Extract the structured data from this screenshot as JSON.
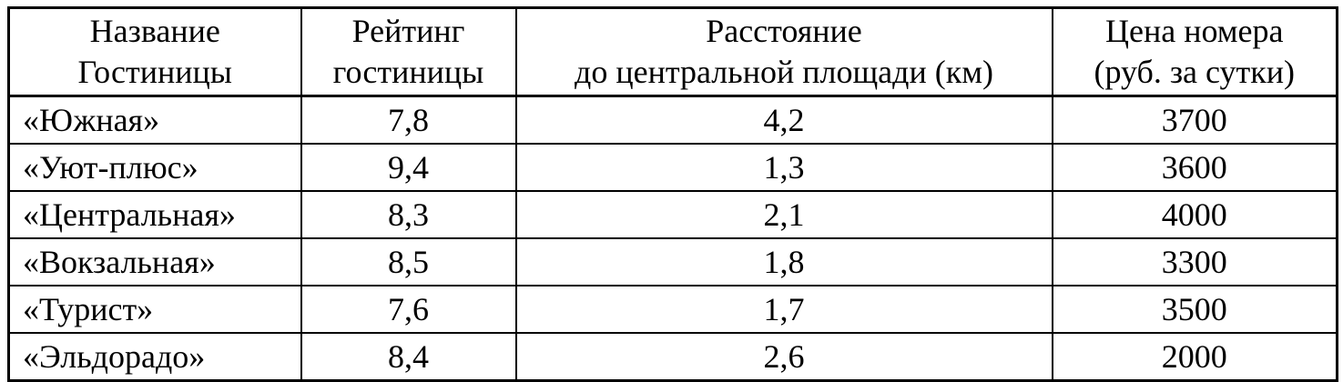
{
  "colors": {
    "border": "#000000",
    "text": "#000000",
    "background": "#ffffff"
  },
  "table": {
    "headers": {
      "name": "Название\nГостиницы",
      "rating": "Рейтинг\nгостиницы",
      "distance": "Расстояние\nдо центральной площади (км)",
      "price": "Цена номера\n(руб. за сутки)"
    },
    "rows": [
      {
        "name": "«Южная»",
        "rating": "7,8",
        "distance": "4,2",
        "price": "3700"
      },
      {
        "name": "«Уют-плюс»",
        "rating": "9,4",
        "distance": "1,3",
        "price": "3600"
      },
      {
        "name": "«Центральная»",
        "rating": "8,3",
        "distance": "2,1",
        "price": "4000"
      },
      {
        "name": "«Вокзальная»",
        "rating": "8,5",
        "distance": "1,8",
        "price": "3300"
      },
      {
        "name": "«Турист»",
        "rating": "7,6",
        "distance": "1,7",
        "price": "3500"
      },
      {
        "name": "«Эльдорадо»",
        "rating": "8,4",
        "distance": "2,6",
        "price": "2000"
      }
    ]
  }
}
